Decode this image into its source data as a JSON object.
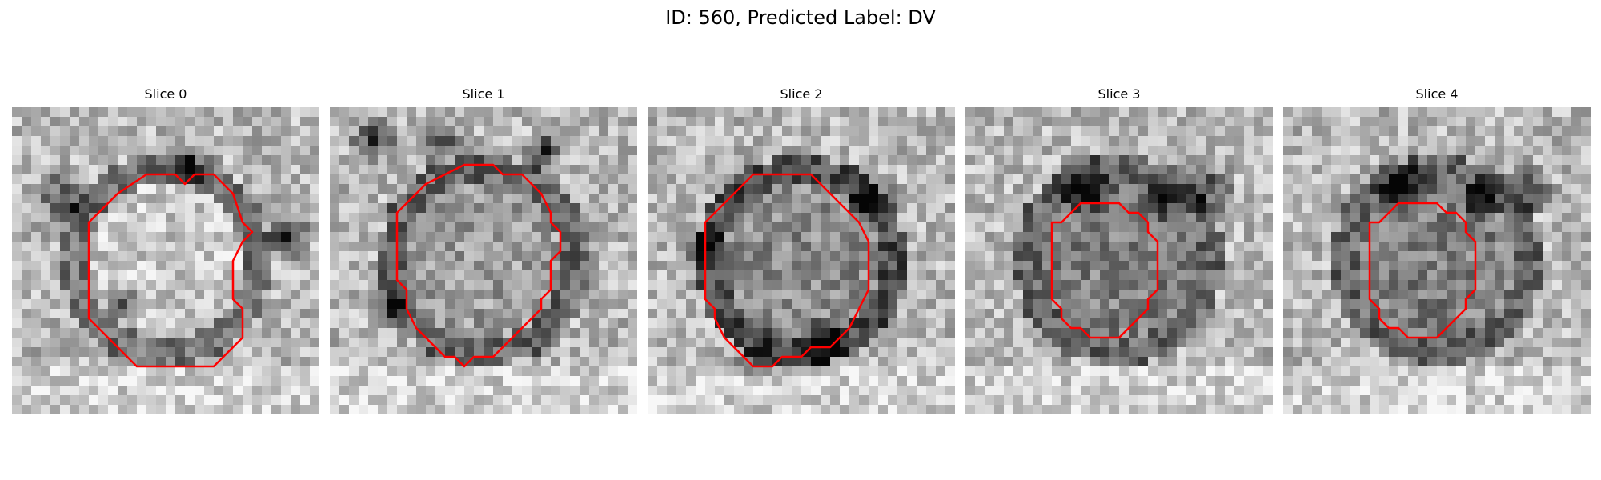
{
  "figure": {
    "title": "ID: 560, Predicted Label: DV"
  },
  "slices": [
    {
      "label": "Slice 0",
      "seed": 11,
      "contour": [
        [
          14,
          7
        ],
        [
          17,
          7
        ],
        [
          18,
          8
        ],
        [
          19,
          7
        ],
        [
          21,
          7
        ],
        [
          23,
          9
        ],
        [
          24,
          12
        ],
        [
          25,
          13
        ],
        [
          24,
          14
        ],
        [
          23,
          16
        ],
        [
          23,
          20
        ],
        [
          24,
          21
        ],
        [
          24,
          24
        ],
        [
          21,
          27
        ],
        [
          13,
          27
        ],
        [
          9,
          23
        ],
        [
          8,
          22
        ],
        [
          8,
          12
        ],
        [
          11,
          9
        ]
      ],
      "dark_spots": [
        [
          5,
          9,
          3.5
        ],
        [
          18,
          6,
          3
        ],
        [
          28,
          13,
          3
        ],
        [
          11,
          20,
          2.5
        ]
      ],
      "center_tone": 0.78,
      "ring_tone": 0.45
    },
    {
      "label": "Slice 1",
      "seed": 23,
      "contour": [
        [
          12,
          7
        ],
        [
          14,
          6
        ],
        [
          17,
          6
        ],
        [
          18,
          7
        ],
        [
          20,
          7
        ],
        [
          21,
          8
        ],
        [
          22,
          9
        ],
        [
          23,
          11
        ],
        [
          23,
          12
        ],
        [
          24,
          13
        ],
        [
          24,
          15
        ],
        [
          23,
          16
        ],
        [
          23,
          19
        ],
        [
          22,
          20
        ],
        [
          22,
          21
        ],
        [
          20,
          23
        ],
        [
          19,
          24
        ],
        [
          17,
          26
        ],
        [
          15,
          26
        ],
        [
          14,
          27
        ],
        [
          13,
          26
        ],
        [
          12,
          26
        ],
        [
          10,
          24
        ],
        [
          9,
          23
        ],
        [
          8,
          21
        ],
        [
          8,
          19
        ],
        [
          7,
          18
        ],
        [
          7,
          11
        ],
        [
          8,
          10
        ],
        [
          9,
          9
        ],
        [
          10,
          8
        ]
      ],
      "dark_spots": [
        [
          4,
          3,
          3
        ],
        [
          11,
          3,
          3
        ],
        [
          22,
          4,
          2.5
        ],
        [
          6,
          20,
          2.5
        ]
      ],
      "center_tone": 0.62,
      "ring_tone": 0.4
    },
    {
      "label": "Slice 2",
      "seed": 37,
      "contour": [
        [
          10,
          8
        ],
        [
          11,
          7
        ],
        [
          17,
          7
        ],
        [
          18,
          8
        ],
        [
          19,
          9
        ],
        [
          20,
          10
        ],
        [
          21,
          11
        ],
        [
          22,
          12
        ],
        [
          23,
          14
        ],
        [
          23,
          19
        ],
        [
          22,
          21
        ],
        [
          21,
          23
        ],
        [
          20,
          24
        ],
        [
          19,
          25
        ],
        [
          17,
          25
        ],
        [
          16,
          26
        ],
        [
          14,
          26
        ],
        [
          13,
          27
        ],
        [
          11,
          27
        ],
        [
          10,
          26
        ],
        [
          9,
          25
        ],
        [
          8,
          24
        ],
        [
          7,
          22
        ],
        [
          7,
          21
        ],
        [
          6,
          20
        ],
        [
          6,
          12
        ],
        [
          7,
          11
        ],
        [
          8,
          10
        ],
        [
          9,
          9
        ]
      ],
      "dark_spots": [
        [
          23,
          9,
          3
        ],
        [
          18,
          24,
          3
        ],
        [
          5,
          14,
          3
        ],
        [
          11,
          26,
          2.5
        ]
      ],
      "center_tone": 0.55,
      "ring_tone": 0.3
    },
    {
      "label": "Slice 3",
      "seed": 53,
      "contour": [
        [
          11,
          11
        ],
        [
          12,
          10
        ],
        [
          16,
          10
        ],
        [
          17,
          11
        ],
        [
          18,
          11
        ],
        [
          19,
          12
        ],
        [
          19,
          13
        ],
        [
          20,
          14
        ],
        [
          20,
          19
        ],
        [
          19,
          20
        ],
        [
          19,
          21
        ],
        [
          18,
          22
        ],
        [
          17,
          23
        ],
        [
          16,
          24
        ],
        [
          13,
          24
        ],
        [
          12,
          23
        ],
        [
          11,
          23
        ],
        [
          10,
          22
        ],
        [
          10,
          21
        ],
        [
          9,
          20
        ],
        [
          9,
          12
        ],
        [
          10,
          12
        ]
      ],
      "dark_spots": [
        [
          12,
          8,
          3.5
        ],
        [
          25,
          8,
          3
        ],
        [
          20,
          9,
          2.5
        ]
      ],
      "center_tone": 0.5,
      "ring_tone": 0.4
    },
    {
      "label": "Slice 4",
      "seed": 71,
      "contour": [
        [
          11,
          11
        ],
        [
          12,
          10
        ],
        [
          16,
          10
        ],
        [
          17,
          11
        ],
        [
          18,
          11
        ],
        [
          19,
          12
        ],
        [
          19,
          13
        ],
        [
          20,
          14
        ],
        [
          20,
          19
        ],
        [
          19,
          20
        ],
        [
          19,
          21
        ],
        [
          18,
          22
        ],
        [
          17,
          23
        ],
        [
          16,
          24
        ],
        [
          13,
          24
        ],
        [
          12,
          23
        ],
        [
          11,
          23
        ],
        [
          10,
          22
        ],
        [
          10,
          21
        ],
        [
          9,
          20
        ],
        [
          9,
          12
        ],
        [
          10,
          12
        ]
      ],
      "dark_spots": [
        [
          12,
          8,
          3.5
        ],
        [
          25,
          8,
          3
        ],
        [
          20,
          9,
          2.5
        ]
      ],
      "center_tone": 0.5,
      "ring_tone": 0.4
    }
  ],
  "colors": {
    "contour": "#ff0000"
  }
}
